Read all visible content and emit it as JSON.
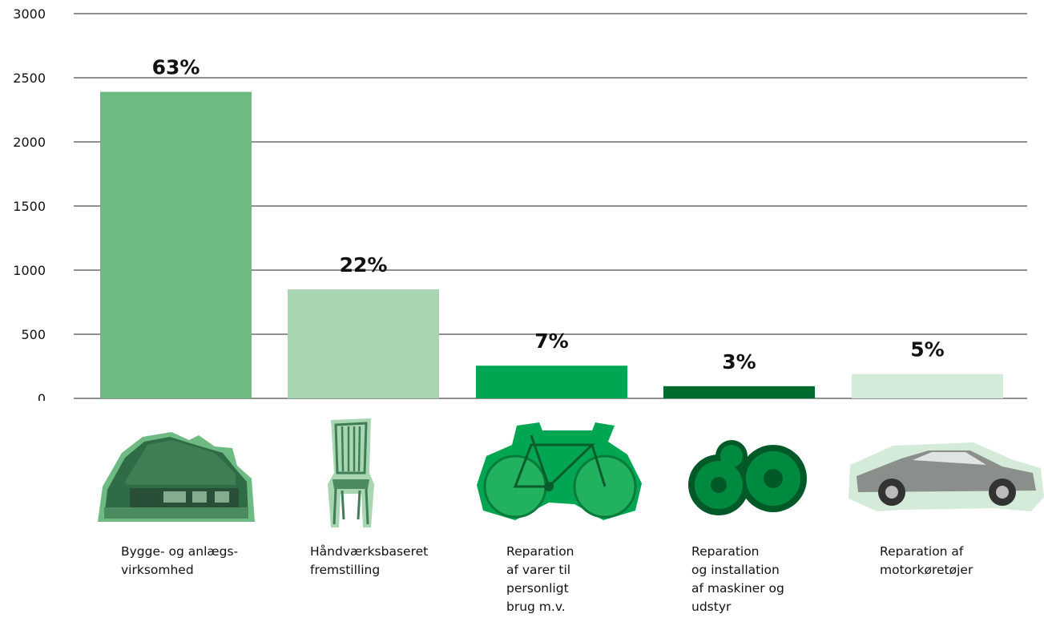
{
  "chart_data": {
    "type": "bar",
    "categories": [
      "Bygge- og anlægs-\nvirksomhed",
      "Håndværksbaseret\nfremstilling",
      "Reparation\naf varer til\npersonligt\nbrug m.v.",
      "Reparation\nog installation\naf maskiner og\nudstyr",
      "Reparation af\nmotorkøretøjer"
    ],
    "values": [
      2390,
      850,
      255,
      95,
      190
    ],
    "data_labels": [
      "63%",
      "22%",
      "7%",
      "3%",
      "5%"
    ],
    "colors": [
      "#6dbb83",
      "#a9d6b2",
      "#00a651",
      "#006b2e",
      "#d4ebda"
    ],
    "yticks": [
      "0",
      "500",
      "1000",
      "1500",
      "2000",
      "2500",
      "3000"
    ],
    "ylim": [
      0,
      3000
    ],
    "grid": true,
    "title": "",
    "xlabel": "",
    "ylabel": ""
  },
  "icons": [
    "house-icon",
    "chair-icon",
    "bicycle-icon",
    "gears-icon",
    "car-icon"
  ]
}
